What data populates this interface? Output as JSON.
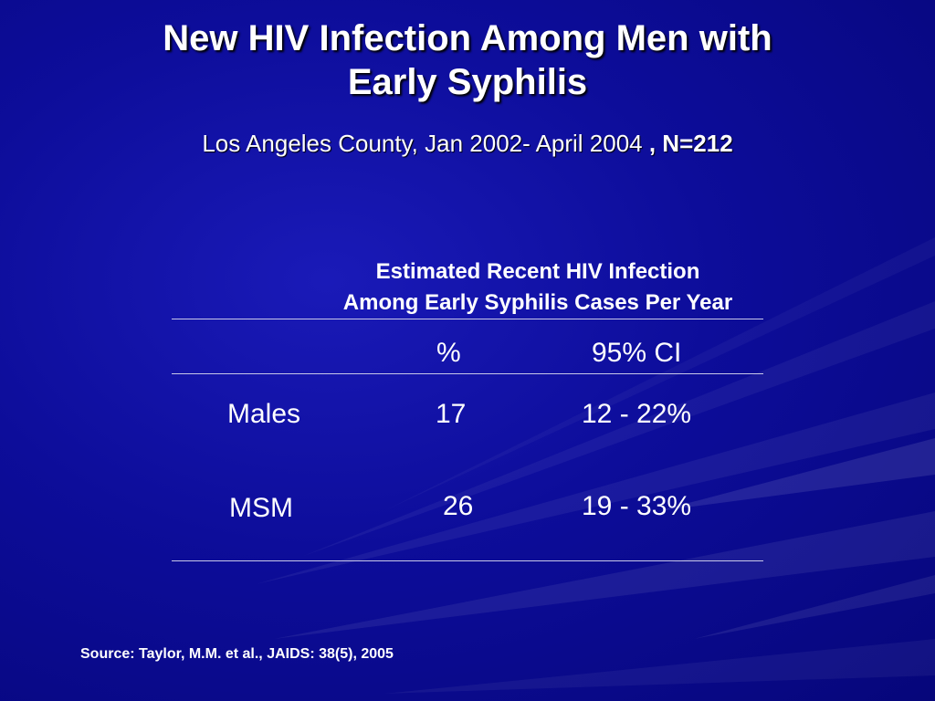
{
  "slide": {
    "title_line1": "New HIV Infection Among Men with",
    "title_line2": "Early Syphilis",
    "subtitle": "Los Angeles County, Jan 2002- April 2004",
    "subtitle_n": " , N=212"
  },
  "table": {
    "caption_line1": "Estimated Recent HIV Infection",
    "caption_line2": "Among Early Syphilis Cases Per Year",
    "headers": [
      "%",
      "95% CI"
    ],
    "rows": [
      {
        "label": "Males",
        "percent": "17",
        "ci": "12 - 22%"
      },
      {
        "label": "MSM",
        "percent": "26",
        "ci": "19 - 33%"
      }
    ]
  },
  "source": "Source: Taylor, M.M. et al., JAIDS: 38(5), 2005",
  "colors": {
    "background": "#0d0d9a",
    "text": "#ffffff",
    "rule": "#c8c8e8"
  }
}
